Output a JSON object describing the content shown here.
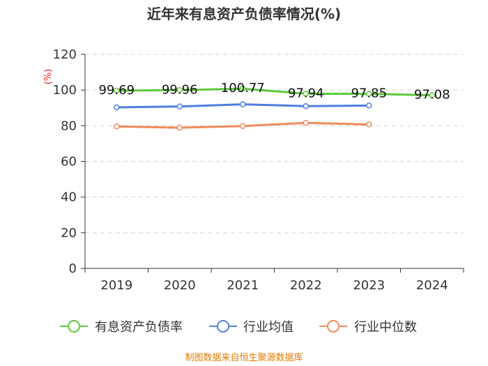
{
  "chart_data": {
    "type": "line",
    "title": "近年来有息资产负债率情况(%)",
    "ylabel": "(%)",
    "xlabel": "",
    "categories": [
      "2019",
      "2020",
      "2021",
      "2022",
      "2023",
      "2024"
    ],
    "ylim": [
      0,
      120
    ],
    "yticks": [
      0,
      20,
      40,
      60,
      80,
      100,
      120
    ],
    "grid": true,
    "legend_position": "bottom",
    "series": [
      {
        "name": "有息资产负债率",
        "color": "#5cc93a",
        "values": [
          99.69,
          99.96,
          100.77,
          97.94,
          97.85,
          97.08
        ],
        "labels": [
          "99.69",
          "99.96",
          "100.77",
          "97.94",
          "97.85",
          "97.08"
        ]
      },
      {
        "name": "行业均值",
        "color": "#4f7fe0",
        "values": [
          90.3,
          90.8,
          92.0,
          91.0,
          91.3,
          null
        ]
      },
      {
        "name": "行业中位数",
        "color": "#f08a5d",
        "values": [
          79.6,
          78.9,
          79.8,
          81.6,
          80.7,
          null
        ]
      }
    ],
    "source": "制图数据来自恒生聚源数据库"
  }
}
